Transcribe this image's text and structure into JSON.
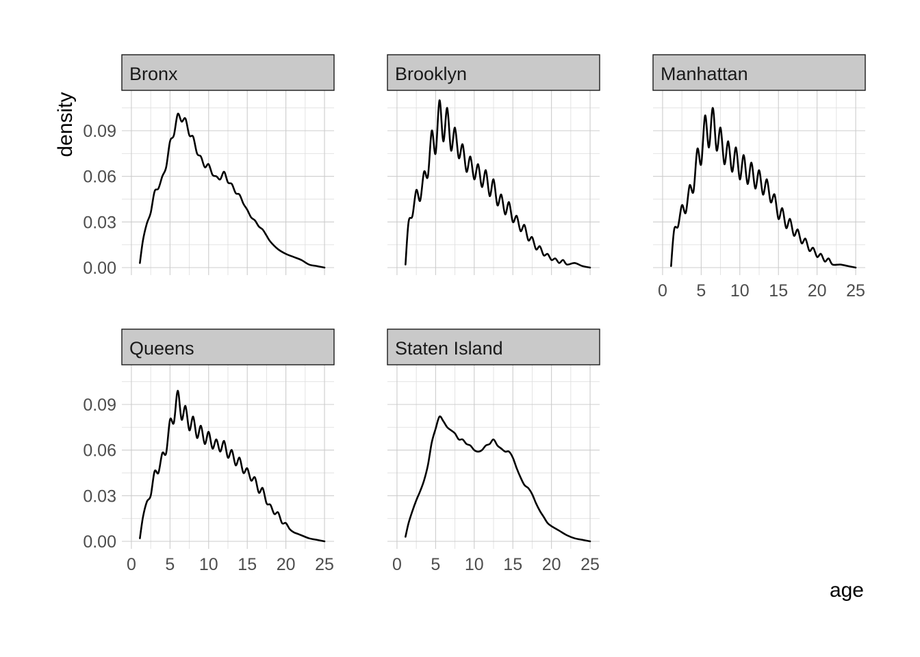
{
  "chart_data": {
    "type": "line",
    "kind": "faceted density plot",
    "xlabel": "age",
    "ylabel": "density",
    "xlim": [
      0,
      25
    ],
    "ylim": [
      0,
      0.1
    ],
    "x_ticks": [
      0,
      5,
      10,
      15,
      20,
      25
    ],
    "x_tick_labels": [
      "0",
      "5",
      "10",
      "15",
      "20",
      "25"
    ],
    "y_ticks": [
      0.0,
      0.03,
      0.06,
      0.09
    ],
    "y_tick_labels": [
      "0.00",
      "0.03",
      "0.06",
      "0.09"
    ],
    "grid": true,
    "facets": [
      {
        "name": "Bronx",
        "x": [
          1.1,
          1.5,
          2,
          2.5,
          3,
          3.5,
          4,
          4.5,
          5,
          5.5,
          6,
          6.5,
          7,
          7.5,
          8,
          8.5,
          9,
          9.5,
          10,
          10.5,
          11,
          11.5,
          12,
          12.5,
          13,
          13.5,
          14,
          14.5,
          15,
          15.5,
          16,
          16.5,
          17,
          17.5,
          18,
          19,
          20,
          21,
          22,
          23,
          24,
          25
        ],
        "y": [
          0.003,
          0.018,
          0.029,
          0.036,
          0.05,
          0.052,
          0.06,
          0.066,
          0.083,
          0.087,
          0.101,
          0.096,
          0.098,
          0.087,
          0.086,
          0.075,
          0.073,
          0.066,
          0.068,
          0.061,
          0.06,
          0.058,
          0.063,
          0.056,
          0.055,
          0.049,
          0.048,
          0.042,
          0.038,
          0.033,
          0.031,
          0.027,
          0.025,
          0.021,
          0.017,
          0.012,
          0.009,
          0.007,
          0.005,
          0.002,
          0.001,
          0.0
        ]
      },
      {
        "name": "Brooklyn",
        "x": [
          1.1,
          1.5,
          2,
          2.5,
          3,
          3.5,
          4,
          4.5,
          5,
          5.5,
          6,
          6.5,
          7,
          7.5,
          8,
          8.5,
          9,
          9.5,
          10,
          10.5,
          11,
          11.5,
          12,
          12.5,
          13,
          13.5,
          14,
          14.5,
          15,
          15.5,
          16,
          16.5,
          17,
          17.5,
          18,
          18.5,
          19,
          19.5,
          20,
          20.5,
          21,
          21.5,
          22,
          23,
          24,
          25
        ],
        "y": [
          0.002,
          0.03,
          0.034,
          0.051,
          0.044,
          0.063,
          0.06,
          0.09,
          0.075,
          0.11,
          0.083,
          0.105,
          0.077,
          0.092,
          0.072,
          0.081,
          0.063,
          0.073,
          0.058,
          0.068,
          0.053,
          0.064,
          0.047,
          0.058,
          0.041,
          0.048,
          0.035,
          0.043,
          0.03,
          0.034,
          0.024,
          0.028,
          0.018,
          0.02,
          0.012,
          0.014,
          0.008,
          0.009,
          0.005,
          0.006,
          0.003,
          0.005,
          0.002,
          0.003,
          0.001,
          0.0
        ]
      },
      {
        "name": "Manhattan",
        "x": [
          1.1,
          1.5,
          2,
          2.5,
          3,
          3.5,
          4,
          4.5,
          5,
          5.5,
          6,
          6.5,
          7,
          7.5,
          8,
          8.5,
          9,
          9.5,
          10,
          10.5,
          11,
          11.5,
          12,
          12.5,
          13,
          13.5,
          14,
          14.5,
          15,
          15.5,
          16,
          16.5,
          17,
          17.5,
          18,
          18.5,
          19,
          19.5,
          20,
          20.5,
          21,
          21.5,
          22,
          23,
          24,
          25
        ],
        "y": [
          0.001,
          0.025,
          0.027,
          0.041,
          0.036,
          0.054,
          0.05,
          0.078,
          0.068,
          0.1,
          0.079,
          0.105,
          0.077,
          0.092,
          0.068,
          0.083,
          0.063,
          0.079,
          0.058,
          0.074,
          0.055,
          0.069,
          0.052,
          0.064,
          0.048,
          0.058,
          0.043,
          0.048,
          0.032,
          0.039,
          0.026,
          0.032,
          0.021,
          0.025,
          0.016,
          0.019,
          0.011,
          0.013,
          0.007,
          0.009,
          0.004,
          0.006,
          0.002,
          0.002,
          0.001,
          0.0
        ]
      },
      {
        "name": "Queens",
        "x": [
          1.1,
          1.5,
          2,
          2.5,
          3,
          3.5,
          4,
          4.5,
          5,
          5.5,
          6,
          6.5,
          7,
          7.5,
          8,
          8.5,
          9,
          9.5,
          10,
          10.5,
          11,
          11.5,
          12,
          12.5,
          13,
          13.5,
          14,
          14.5,
          15,
          15.5,
          16,
          16.5,
          17,
          17.5,
          18,
          18.5,
          19,
          19.5,
          20,
          20.5,
          21,
          21.5,
          22,
          23,
          24,
          25
        ],
        "y": [
          0.002,
          0.016,
          0.026,
          0.03,
          0.046,
          0.045,
          0.058,
          0.058,
          0.08,
          0.078,
          0.099,
          0.08,
          0.089,
          0.073,
          0.082,
          0.068,
          0.076,
          0.064,
          0.072,
          0.061,
          0.067,
          0.059,
          0.066,
          0.055,
          0.06,
          0.05,
          0.055,
          0.045,
          0.048,
          0.04,
          0.042,
          0.032,
          0.035,
          0.025,
          0.024,
          0.018,
          0.019,
          0.012,
          0.012,
          0.008,
          0.006,
          0.005,
          0.004,
          0.002,
          0.001,
          0.0
        ]
      },
      {
        "name": "Staten Island",
        "x": [
          1.1,
          1.5,
          2,
          2.5,
          3,
          3.5,
          4,
          4.5,
          5,
          5.5,
          6,
          6.5,
          7,
          7.5,
          8,
          8.5,
          9,
          9.5,
          10,
          10.5,
          11,
          11.5,
          12,
          12.5,
          13,
          13.5,
          14,
          14.5,
          15,
          15.5,
          16,
          16.5,
          17,
          17.5,
          18,
          18.5,
          19,
          19.5,
          20,
          21,
          22,
          23,
          24,
          25
        ],
        "y": [
          0.003,
          0.012,
          0.02,
          0.027,
          0.033,
          0.04,
          0.05,
          0.065,
          0.074,
          0.082,
          0.079,
          0.075,
          0.073,
          0.071,
          0.067,
          0.067,
          0.064,
          0.063,
          0.06,
          0.059,
          0.06,
          0.063,
          0.064,
          0.067,
          0.063,
          0.061,
          0.059,
          0.059,
          0.055,
          0.048,
          0.042,
          0.037,
          0.035,
          0.031,
          0.025,
          0.02,
          0.016,
          0.012,
          0.01,
          0.007,
          0.004,
          0.002,
          0.001,
          0.0
        ]
      }
    ]
  }
}
